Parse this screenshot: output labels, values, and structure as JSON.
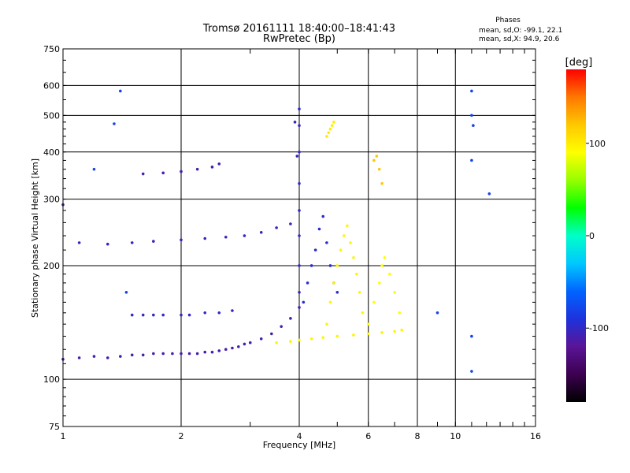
{
  "chart_data": {
    "type": "scatter",
    "title": "Tromsø 20161111 18:40:00–18:41:43",
    "subtitle": "RwPretec (Bp)",
    "xlabel": "Frequency [MHz]",
    "ylabel": "Stationary phase Virtual Height [km]",
    "x_scale": "log",
    "y_scale": "log",
    "xlim": [
      1,
      16
    ],
    "ylim": [
      75,
      750
    ],
    "x_ticks": [
      1,
      2,
      4,
      6,
      8,
      10,
      16
    ],
    "y_ticks": [
      75,
      100,
      200,
      300,
      400,
      500,
      600,
      750
    ],
    "grid": true,
    "stats": {
      "heading": "Phases",
      "line1": "mean, sd,O: -99.1, 22.1",
      "line2": "mean, sd,X:  94.9, 20.6"
    },
    "colorbar": {
      "label": "[deg]",
      "ticks": [
        -100,
        0,
        100
      ],
      "range": [
        -180,
        180
      ],
      "colors": [
        "#000000",
        "#3c0050",
        "#5a1496",
        "#1e32dc",
        "#0064ff",
        "#00c8ff",
        "#00ffc8",
        "#00ff00",
        "#96ff00",
        "#ffff00",
        "#ffc800",
        "#ff7800",
        "#ff0000"
      ]
    },
    "series": [
      {
        "points": [
          [
            1.0,
            113
          ],
          [
            1.1,
            114
          ],
          [
            1.2,
            115
          ],
          [
            1.3,
            114
          ],
          [
            1.4,
            115
          ],
          [
            1.5,
            116
          ],
          [
            1.6,
            116
          ],
          [
            1.7,
            117
          ],
          [
            1.8,
            117
          ],
          [
            1.9,
            117
          ],
          [
            2.0,
            117
          ],
          [
            2.1,
            117
          ],
          [
            2.2,
            117
          ],
          [
            2.3,
            118
          ],
          [
            2.4,
            118
          ],
          [
            2.5,
            119
          ],
          [
            2.6,
            120
          ],
          [
            2.7,
            121
          ],
          [
            2.8,
            122
          ],
          [
            2.9,
            124
          ],
          [
            3.0,
            125
          ],
          [
            3.2,
            128
          ],
          [
            3.4,
            132
          ],
          [
            3.6,
            138
          ],
          [
            3.8,
            145
          ],
          [
            4.0,
            155
          ]
        ],
        "phase": -110
      },
      {
        "points": [
          [
            3.5,
            125
          ],
          [
            3.8,
            126
          ],
          [
            4.0,
            127
          ],
          [
            4.3,
            128
          ],
          [
            4.6,
            129
          ],
          [
            5.0,
            130
          ],
          [
            5.5,
            131
          ],
          [
            6.0,
            132
          ],
          [
            6.5,
            133
          ],
          [
            7.0,
            134
          ],
          [
            7.3,
            135
          ]
        ],
        "phase": 95
      },
      {
        "points": [
          [
            1.0,
            290
          ],
          [
            1.1,
            230
          ],
          [
            1.3,
            228
          ],
          [
            1.5,
            230
          ],
          [
            1.7,
            232
          ],
          [
            2.0,
            234
          ],
          [
            2.3,
            236
          ],
          [
            2.6,
            238
          ],
          [
            2.9,
            240
          ],
          [
            3.2,
            245
          ],
          [
            3.5,
            252
          ],
          [
            3.8,
            258
          ]
        ],
        "phase": -105
      },
      {
        "points": [
          [
            1.5,
            148
          ],
          [
            1.6,
            148
          ],
          [
            1.7,
            148
          ],
          [
            1.8,
            148
          ],
          [
            2.0,
            148
          ],
          [
            2.1,
            148
          ],
          [
            2.3,
            150
          ],
          [
            2.5,
            150
          ],
          [
            2.7,
            152
          ]
        ],
        "phase": -100
      },
      {
        "points": [
          [
            1.6,
            350
          ],
          [
            1.8,
            352
          ],
          [
            2.0,
            355
          ],
          [
            2.2,
            360
          ],
          [
            2.4,
            365
          ],
          [
            2.5,
            372
          ]
        ],
        "phase": -110
      },
      {
        "points": [
          [
            4.0,
            170
          ],
          [
            4.0,
            200
          ],
          [
            4.0,
            240
          ],
          [
            4.0,
            280
          ],
          [
            4.0,
            330
          ],
          [
            4.0,
            400
          ],
          [
            4.0,
            470
          ],
          [
            4.0,
            520
          ],
          [
            3.9,
            480
          ],
          [
            3.95,
            390
          ]
        ],
        "phase": -100
      },
      {
        "points": [
          [
            4.1,
            160
          ],
          [
            4.2,
            180
          ],
          [
            4.3,
            200
          ],
          [
            4.4,
            220
          ],
          [
            4.5,
            250
          ],
          [
            4.6,
            270
          ],
          [
            4.7,
            230
          ],
          [
            4.8,
            200
          ],
          [
            4.9,
            180
          ],
          [
            5.0,
            170
          ]
        ],
        "phase": -95
      },
      {
        "points": [
          [
            4.7,
            140
          ],
          [
            4.8,
            160
          ],
          [
            4.9,
            180
          ],
          [
            5.0,
            200
          ],
          [
            5.1,
            220
          ],
          [
            5.2,
            240
          ],
          [
            5.3,
            255
          ],
          [
            5.4,
            230
          ],
          [
            5.5,
            210
          ],
          [
            5.6,
            190
          ],
          [
            5.7,
            170
          ],
          [
            5.8,
            150
          ]
        ],
        "phase": 95
      },
      {
        "points": [
          [
            6.0,
            140
          ],
          [
            6.2,
            160
          ],
          [
            6.4,
            180
          ],
          [
            6.5,
            200
          ],
          [
            6.6,
            210
          ],
          [
            6.8,
            190
          ],
          [
            7.0,
            170
          ],
          [
            7.2,
            150
          ]
        ],
        "phase": 90
      },
      {
        "points": [
          [
            4.7,
            440
          ],
          [
            4.75,
            450
          ],
          [
            4.8,
            460
          ],
          [
            4.85,
            470
          ],
          [
            4.9,
            480
          ]
        ],
        "phase": 100
      },
      {
        "points": [
          [
            6.2,
            380
          ],
          [
            6.3,
            390
          ],
          [
            6.4,
            360
          ],
          [
            6.5,
            330
          ]
        ],
        "phase": 120
      },
      {
        "points": [
          [
            11.0,
            580
          ],
          [
            11.0,
            500
          ],
          [
            11.1,
            470
          ],
          [
            11.0,
            380
          ],
          [
            11.0,
            130
          ],
          [
            11.0,
            105
          ],
          [
            12.2,
            310
          ],
          [
            9.0,
            150
          ],
          [
            1.2,
            360
          ],
          [
            1.4,
            580
          ],
          [
            1.35,
            475
          ],
          [
            1.45,
            170
          ]
        ],
        "phase": -80
      }
    ]
  }
}
